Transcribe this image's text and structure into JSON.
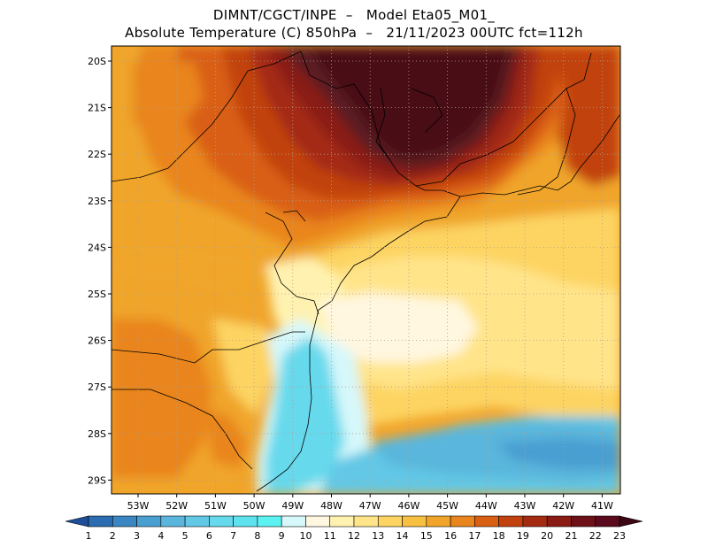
{
  "header": {
    "line1": "DIMNT/CGCT/INPE  –   Model Eta05_M01_",
    "line2": "Absolute Temperature (C) 850hPa  –   21/11/2023 00UTC fct=112h"
  },
  "map": {
    "lat_labels": [
      "20S",
      "21S",
      "22S",
      "23S",
      "24S",
      "25S",
      "26S",
      "27S",
      "28S",
      "29S"
    ],
    "lon_labels": [
      "53W",
      "52W",
      "51W",
      "50W",
      "49W",
      "48W",
      "47W",
      "46W",
      "45W",
      "44W",
      "43W",
      "42W",
      "41W"
    ],
    "colors": {
      "deep_warm": "#5a1a22",
      "ocean": "#ffffff"
    }
  },
  "colorbar": {
    "labels": [
      "1",
      "2",
      "3",
      "4",
      "5",
      "6",
      "7",
      "8",
      "9",
      "10",
      "11",
      "12",
      "13",
      "14",
      "15",
      "16",
      "17",
      "18",
      "19",
      "20",
      "21",
      "22",
      "23"
    ],
    "colors": [
      "#1f4e99",
      "#2c6cb0",
      "#3a86c2",
      "#4a9fd1",
      "#5ab6dc",
      "#62c8e6",
      "#66d9ec",
      "#5ee3ee",
      "#5df2f2",
      "#d6f8fb",
      "#fff7e0",
      "#fff2b0",
      "#ffe48a",
      "#fdd462",
      "#f7c041",
      "#f0a52a",
      "#e9851d",
      "#d95f12",
      "#c2420f",
      "#a42b12",
      "#8a1a14",
      "#6e1018",
      "#5a0a1c",
      "#3d0614"
    ]
  }
}
